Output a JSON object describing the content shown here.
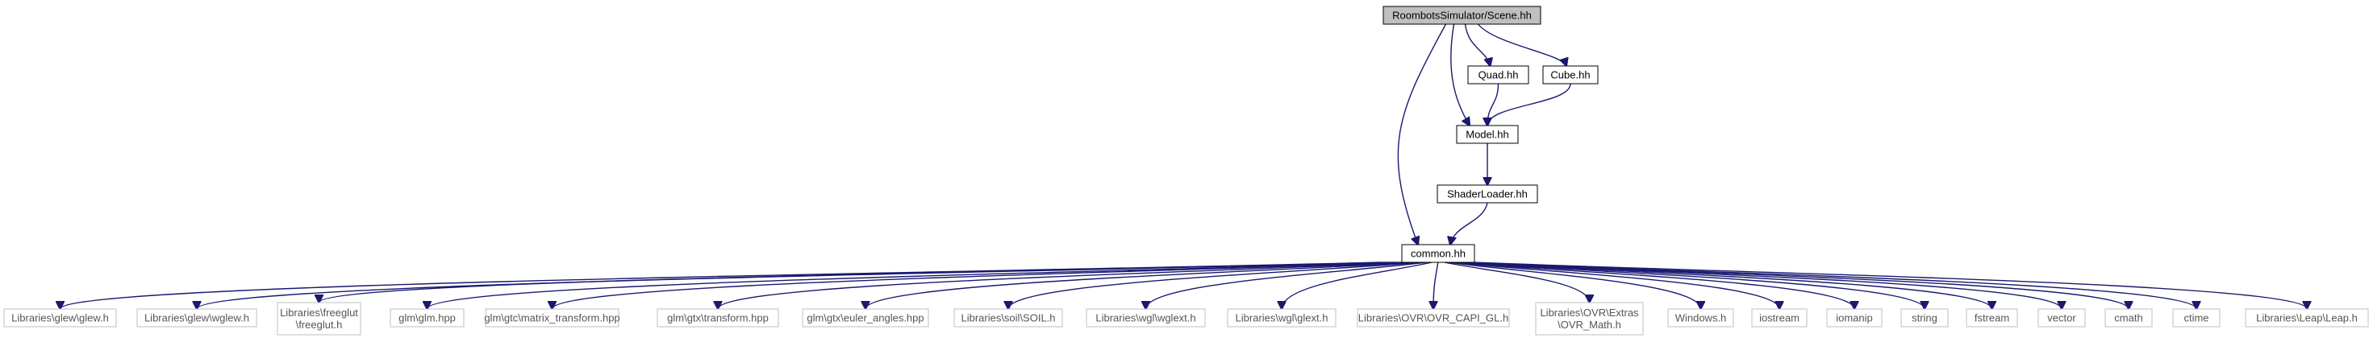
{
  "colors": {
    "edge": "#191970",
    "root_fill": "#bfbfbf",
    "root_stroke": "#000000",
    "local_stroke": "#000000",
    "system_stroke": "#bfbfbf",
    "text": "#000000",
    "system_text": "#555555"
  },
  "nodes": [
    {
      "id": "scene",
      "lines": [
        "RoombotsSimulator/Scene.hh"
      ],
      "kind": "root"
    },
    {
      "id": "quad",
      "lines": [
        "Quad.hh"
      ],
      "kind": "local"
    },
    {
      "id": "cube",
      "lines": [
        "Cube.hh"
      ],
      "kind": "local"
    },
    {
      "id": "model",
      "lines": [
        "Model.hh"
      ],
      "kind": "local"
    },
    {
      "id": "shaderloader",
      "lines": [
        "ShaderLoader.hh"
      ],
      "kind": "local"
    },
    {
      "id": "common",
      "lines": [
        "common.hh"
      ],
      "kind": "local"
    },
    {
      "id": "glew",
      "lines": [
        "Libraries\\glew\\glew.h"
      ],
      "kind": "system"
    },
    {
      "id": "wglew",
      "lines": [
        "Libraries\\glew\\wglew.h"
      ],
      "kind": "system"
    },
    {
      "id": "freeglut",
      "lines": [
        "Libraries\\freeglut",
        "\\freeglut.h"
      ],
      "kind": "system"
    },
    {
      "id": "glm",
      "lines": [
        "glm\\glm.hpp"
      ],
      "kind": "system"
    },
    {
      "id": "mattrans",
      "lines": [
        "glm\\gtc\\matrix_transform.hpp"
      ],
      "kind": "system"
    },
    {
      "id": "transform",
      "lines": [
        "glm\\gtx\\transform.hpp"
      ],
      "kind": "system"
    },
    {
      "id": "euler",
      "lines": [
        "glm\\gtx\\euler_angles.hpp"
      ],
      "kind": "system"
    },
    {
      "id": "soil",
      "lines": [
        "Libraries\\soil\\SOIL.h"
      ],
      "kind": "system"
    },
    {
      "id": "wglext",
      "lines": [
        "Libraries\\wgl\\wglext.h"
      ],
      "kind": "system"
    },
    {
      "id": "glext",
      "lines": [
        "Libraries\\wgl\\glext.h"
      ],
      "kind": "system"
    },
    {
      "id": "ovrcapi",
      "lines": [
        "Libraries\\OVR\\OVR_CAPI_GL.h"
      ],
      "kind": "system"
    },
    {
      "id": "ovrmath",
      "lines": [
        "Libraries\\OVR\\Extras",
        "\\OVR_Math.h"
      ],
      "kind": "system"
    },
    {
      "id": "windows",
      "lines": [
        "Windows.h"
      ],
      "kind": "system"
    },
    {
      "id": "iostream",
      "lines": [
        "iostream"
      ],
      "kind": "system"
    },
    {
      "id": "iomanip",
      "lines": [
        "iomanip"
      ],
      "kind": "system"
    },
    {
      "id": "string",
      "lines": [
        "string"
      ],
      "kind": "system"
    },
    {
      "id": "fstream",
      "lines": [
        "fstream"
      ],
      "kind": "system"
    },
    {
      "id": "vector",
      "lines": [
        "vector"
      ],
      "kind": "system"
    },
    {
      "id": "cmath",
      "lines": [
        "cmath"
      ],
      "kind": "system"
    },
    {
      "id": "ctime",
      "lines": [
        "ctime"
      ],
      "kind": "system"
    },
    {
      "id": "leap",
      "lines": [
        "Libraries\\Leap\\Leap.h"
      ],
      "kind": "system"
    }
  ],
  "edges": [
    {
      "from": "scene",
      "to": "quad"
    },
    {
      "from": "scene",
      "to": "cube"
    },
    {
      "from": "scene",
      "to": "model"
    },
    {
      "from": "scene",
      "to": "common"
    },
    {
      "from": "quad",
      "to": "model"
    },
    {
      "from": "cube",
      "to": "model"
    },
    {
      "from": "model",
      "to": "shaderloader"
    },
    {
      "from": "shaderloader",
      "to": "common"
    },
    {
      "from": "common",
      "to": "glew"
    },
    {
      "from": "common",
      "to": "wglew"
    },
    {
      "from": "common",
      "to": "freeglut"
    },
    {
      "from": "common",
      "to": "glm"
    },
    {
      "from": "common",
      "to": "mattrans"
    },
    {
      "from": "common",
      "to": "transform"
    },
    {
      "from": "common",
      "to": "euler"
    },
    {
      "from": "common",
      "to": "soil"
    },
    {
      "from": "common",
      "to": "wglext"
    },
    {
      "from": "common",
      "to": "glext"
    },
    {
      "from": "common",
      "to": "ovrcapi"
    },
    {
      "from": "common",
      "to": "ovrmath"
    },
    {
      "from": "common",
      "to": "windows"
    },
    {
      "from": "common",
      "to": "iostream"
    },
    {
      "from": "common",
      "to": "iomanip"
    },
    {
      "from": "common",
      "to": "string"
    },
    {
      "from": "common",
      "to": "fstream"
    },
    {
      "from": "common",
      "to": "vector"
    },
    {
      "from": "common",
      "to": "cmath"
    },
    {
      "from": "common",
      "to": "ctime"
    },
    {
      "from": "common",
      "to": "leap"
    }
  ]
}
